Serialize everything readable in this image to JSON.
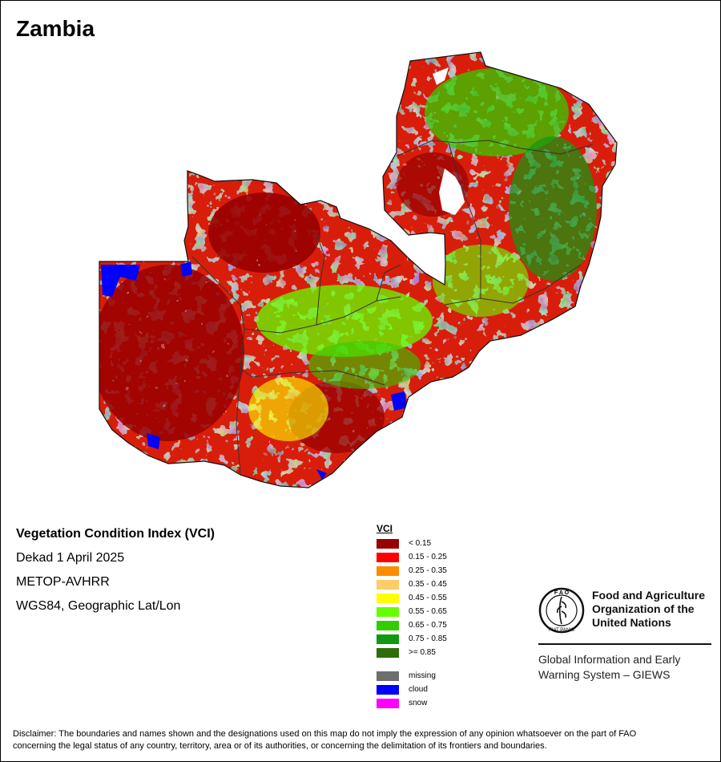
{
  "map": {
    "title": "Zambia",
    "info": {
      "index_name": "Vegetation Condition Index (VCI)",
      "period": "Dekad 1 April 2025",
      "sensor": "METOP-AVHRR",
      "projection": "WGS84, Geographic Lat/Lon"
    },
    "legend": {
      "title": "VCI",
      "classes": [
        {
          "label": "< 0.15",
          "color": "#990000"
        },
        {
          "label": "0.15 - 0.25",
          "color": "#ff0000"
        },
        {
          "label": "0.25 - 0.35",
          "color": "#ff8c00"
        },
        {
          "label": "0.35 - 0.45",
          "color": "#ffcc66"
        },
        {
          "label": "0.45 - 0.55",
          "color": "#ffff00"
        },
        {
          "label": "0.55 - 0.65",
          "color": "#66ff00"
        },
        {
          "label": "0.65 - 0.75",
          "color": "#33cc00"
        },
        {
          "label": "0.75 - 0.85",
          "color": "#119911"
        },
        {
          "label": ">= 0.85",
          "color": "#2d6e0a"
        }
      ],
      "special": [
        {
          "label": "missing",
          "color": "#6e6e6e"
        },
        {
          "label": "cloud",
          "color": "#0000ff"
        },
        {
          "label": "snow",
          "color": "#ff00ff"
        }
      ]
    },
    "org": {
      "emblem_lettering": "FAO FIAT PANIS",
      "name_line1": "Food and Agriculture",
      "name_line2": "Organization of the",
      "name_line3": "United Nations",
      "system_line1": "Global Information and Early",
      "system_line2": "Warning System – GIEWS"
    },
    "disclaimer_line1": "Disclaimer: The boundaries and names shown and the designations used on this map do not imply the expression of any opinion whatsoever on the part of FAO",
    "disclaimer_line2": "concerning the legal status of any country, territory, area or of its authorities, or concerning the delimitation of its frontiers and boundaries."
  }
}
